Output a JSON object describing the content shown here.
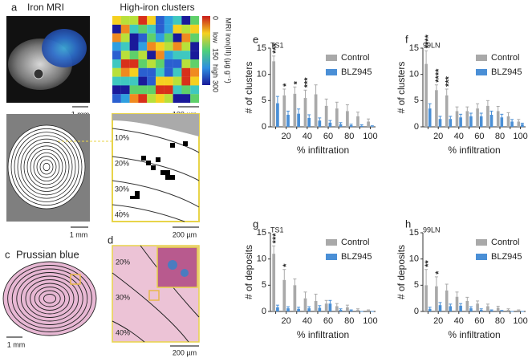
{
  "figure": {
    "a": {
      "label": "a",
      "title": "Iron MRI",
      "scale": "1 mm",
      "heatmap_title": "High-iron clusters",
      "heatmap_scale": "100 µm",
      "colorbar_title": "MRI iron(III) (µg g⁻¹)",
      "colorbar_labels": [
        "0",
        "low",
        "150",
        "high",
        "300"
      ]
    },
    "b": {
      "label": "b",
      "scale": "1 mm",
      "zoom_scale": "200 µm",
      "zoom_labels": [
        "10%",
        "20%",
        "30%",
        "40%"
      ],
      "ellipsis": "⋮"
    },
    "c": {
      "label": "c",
      "title": "Prussian blue",
      "scale": "1 mm"
    },
    "d": {
      "label": "d",
      "labels": [
        "20%",
        "30%",
        "40%"
      ],
      "scale": "200 µm"
    }
  },
  "chart_data": [
    {
      "type": "bar",
      "panel": "e",
      "subtitle": "TS1",
      "ylabel": "# of clusters",
      "xlabel": "% infiltration",
      "categories": [
        null,
        "20",
        null,
        "40",
        null,
        "60",
        null,
        "80",
        null,
        "100"
      ],
      "series": [
        {
          "name": "Control",
          "color": "#a9a9a9",
          "values": [
            12.5,
            6,
            6.3,
            5.5,
            6.2,
            4,
            3.5,
            3,
            2,
            1
          ],
          "errors": [
            1,
            1.2,
            1.3,
            1.5,
            1.8,
            1.3,
            1.2,
            1.2,
            0.8,
            0.5
          ]
        },
        {
          "name": "BLZ945",
          "color": "#4a8fd6",
          "values": [
            4.5,
            2.3,
            2.5,
            1.7,
            1.2,
            0.8,
            0.5,
            0.3,
            0.2,
            0.1
          ],
          "errors": [
            1.3,
            0.7,
            0.9,
            0.6,
            0.5,
            0.4,
            0.3,
            0.2,
            0.2,
            0.1
          ]
        }
      ],
      "significance": [
        "***",
        "*",
        "*",
        "***",
        null,
        null,
        null,
        null,
        null,
        null
      ],
      "ylim": [
        0,
        15
      ],
      "yticks": [
        0,
        5,
        10,
        15
      ],
      "legend": "upper right"
    },
    {
      "type": "bar",
      "panel": "f",
      "subtitle": "99LN",
      "ylabel": "# of clusters",
      "xlabel": "% infiltration",
      "categories": [
        null,
        "20",
        null,
        "40",
        null,
        "60",
        null,
        "80",
        null,
        "100"
      ],
      "series": [
        {
          "name": "Control",
          "color": "#a9a9a9",
          "values": [
            12,
            7,
            6,
            3,
            3,
            3.5,
            4,
            3,
            2,
            1
          ],
          "errors": [
            2.5,
            1,
            1.2,
            0.8,
            0.8,
            0.9,
            1,
            0.9,
            0.7,
            0.4
          ]
        },
        {
          "name": "BLZ945",
          "color": "#4a8fd6",
          "values": [
            3.5,
            1.5,
            1.5,
            1.8,
            2,
            2,
            2.3,
            1.8,
            1,
            0.5
          ],
          "errors": [
            0.9,
            0.5,
            0.5,
            0.6,
            0.6,
            0.6,
            0.7,
            0.6,
            0.4,
            0.2
          ]
        }
      ],
      "significance": [
        "****",
        "****",
        "***",
        null,
        null,
        null,
        null,
        null,
        null,
        null
      ],
      "ylim": [
        0,
        15
      ],
      "yticks": [
        0,
        5,
        10,
        15
      ],
      "legend": "upper right"
    },
    {
      "type": "bar",
      "panel": "g",
      "subtitle": "TS1",
      "ylabel": "# of deposits",
      "xlabel": "% infiltration",
      "categories": [
        null,
        "20",
        null,
        "40",
        null,
        "60",
        null,
        "80",
        null,
        "100"
      ],
      "series": [
        {
          "name": "Control",
          "color": "#a9a9a9",
          "values": [
            11,
            6,
            5,
            2.5,
            2,
            1.5,
            1,
            0.8,
            0.3,
            0.2
          ],
          "errors": [
            1.5,
            2,
            1.2,
            1.2,
            1.3,
            0.6,
            0.5,
            0.4,
            0.2,
            0.1
          ]
        },
        {
          "name": "BLZ945",
          "color": "#4a8fd6",
          "values": [
            0.8,
            0.6,
            0.5,
            0.6,
            0.7,
            1.5,
            0.3,
            0.2,
            0,
            0
          ],
          "errors": [
            0.4,
            0.3,
            0.3,
            0.3,
            0.4,
            0.6,
            0.2,
            0.1,
            0,
            0
          ]
        }
      ],
      "significance": [
        "***",
        "*",
        null,
        null,
        null,
        null,
        null,
        null,
        null,
        null
      ],
      "ylim": [
        0,
        15
      ],
      "yticks": [
        0,
        5,
        10,
        15
      ],
      "legend": "upper right"
    },
    {
      "type": "bar",
      "panel": "h",
      "subtitle": "99LN",
      "ylabel": "# of deposits",
      "xlabel": "% infiltration",
      "categories": [
        null,
        "20",
        null,
        "40",
        null,
        "60",
        null,
        "80",
        null,
        "100"
      ],
      "series": [
        {
          "name": "Control",
          "color": "#a9a9a9",
          "values": [
            5,
            4.8,
            4,
            2.8,
            2,
            1.5,
            1,
            0.7,
            0.3,
            0.2
          ],
          "errors": [
            3,
            1.8,
            1.2,
            0.9,
            0.7,
            0.5,
            0.4,
            0.3,
            0.2,
            0.1
          ]
        },
        {
          "name": "BLZ945",
          "color": "#4a8fd6",
          "values": [
            0.5,
            1.2,
            1,
            1.1,
            0.6,
            0.3,
            0.2,
            0.1,
            0,
            0
          ],
          "errors": [
            0.3,
            0.5,
            0.4,
            0.4,
            0.3,
            0.2,
            0.1,
            0.1,
            0,
            0
          ]
        }
      ],
      "significance": [
        "**",
        "*",
        null,
        null,
        null,
        null,
        null,
        null,
        null,
        null
      ],
      "ylim": [
        0,
        15
      ],
      "yticks": [
        0,
        5,
        10,
        15
      ],
      "legend": "upper right"
    }
  ]
}
